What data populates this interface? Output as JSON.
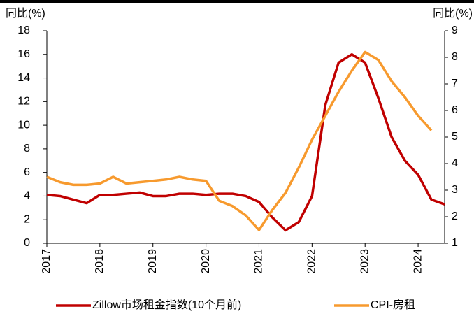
{
  "chart_data": {
    "type": "line",
    "y_label": "同比(%)",
    "y2_label": "同比(%)",
    "x": [
      2017,
      2017.25,
      2017.5,
      2017.75,
      2018,
      2018.25,
      2018.5,
      2018.75,
      2019,
      2019.25,
      2019.5,
      2019.75,
      2020,
      2020.25,
      2020.5,
      2020.75,
      2021,
      2021.25,
      2021.5,
      2021.75,
      2022,
      2022.25,
      2022.5,
      2022.75,
      2023,
      2023.25,
      2023.5,
      2023.75,
      2024,
      2024.25,
      2024.5
    ],
    "series": [
      {
        "name": "Zillow市场租金指数(10个月前)",
        "color": "#c00000",
        "axis": "y",
        "values": [
          4.1,
          4.0,
          3.7,
          3.4,
          4.1,
          4.1,
          4.2,
          4.3,
          4.0,
          4.0,
          4.2,
          4.2,
          4.1,
          4.2,
          4.2,
          4.0,
          3.5,
          2.2,
          1.1,
          1.8,
          4.0,
          11.7,
          15.3,
          16.0,
          15.3,
          12.3,
          9.0,
          7.0,
          5.8,
          3.7,
          3.3
        ]
      },
      {
        "name": "CPI-房租",
        "color": "#f79a2e",
        "axis": "y2",
        "values": [
          3.5,
          3.3,
          3.2,
          3.2,
          3.25,
          3.5,
          3.25,
          3.3,
          3.35,
          3.4,
          3.5,
          3.4,
          3.35,
          2.6,
          2.4,
          2.05,
          1.5,
          2.25,
          2.9,
          3.85,
          4.9,
          5.8,
          6.7,
          7.5,
          8.2,
          7.9,
          7.1,
          6.5,
          5.8,
          5.25,
          null
        ]
      }
    ],
    "xlim": [
      2017,
      2024.5
    ],
    "xticks": [
      2017,
      2018,
      2019,
      2020,
      2021,
      2022,
      2023,
      2024
    ],
    "ylim": [
      0,
      18
    ],
    "yticks": [
      0,
      2,
      4,
      6,
      8,
      10,
      12,
      14,
      16,
      18
    ],
    "y2lim": [
      1,
      9
    ],
    "y2ticks": [
      1,
      2,
      3,
      4,
      5,
      6,
      7,
      8,
      9
    ],
    "grid": false,
    "legend": "bottom"
  }
}
